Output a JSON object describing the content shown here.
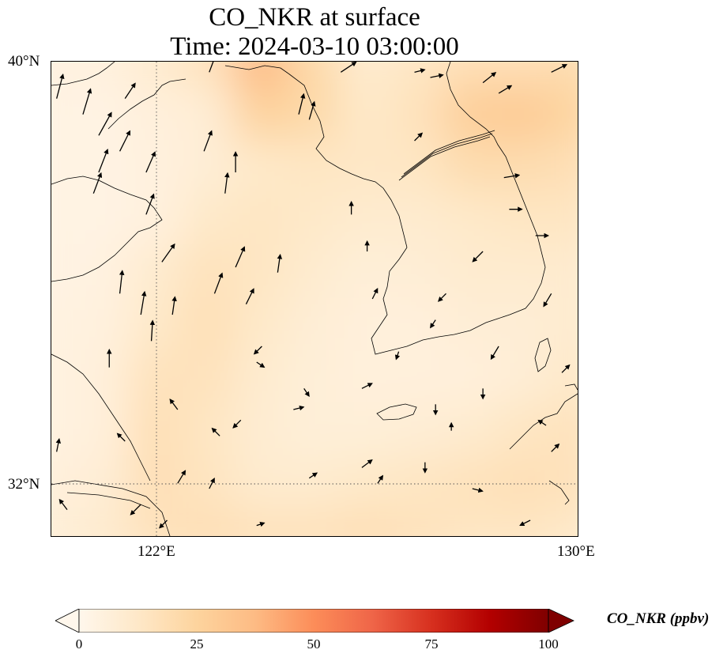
{
  "title": {
    "line1": "CO_NKR at surface",
    "line2": "Time: 2024-03-10 03:00:00"
  },
  "axes": {
    "lat_labels": [
      "40°N",
      "32°N"
    ],
    "lon_labels": [
      "122°E",
      "130°E"
    ],
    "lat_range": [
      31,
      40
    ],
    "lon_range": [
      120,
      130
    ],
    "gridlines": "dotted at 122°E and 32°N"
  },
  "colorbar": {
    "label": "CO_NKR (ppbv)",
    "ticks": [
      "0",
      "25",
      "50",
      "75",
      "100"
    ],
    "range": [
      0,
      100
    ],
    "colormap": "OrRd",
    "extend": "both",
    "colors": [
      "#fff7ec",
      "#fee8c8",
      "#fdd49e",
      "#fdbb84",
      "#fc8d59",
      "#ef6548",
      "#d7301f",
      "#b30000",
      "#7f0000"
    ]
  },
  "chart_data": {
    "type": "heatmap",
    "variable": "CO_NKR",
    "level": "surface",
    "units": "ppbv",
    "grid_lon": [
      120,
      121,
      122,
      123,
      124,
      125,
      126,
      127,
      128,
      129,
      130
    ],
    "grid_lat": [
      40,
      39,
      38,
      37,
      36,
      35,
      34,
      33,
      32,
      31
    ],
    "values": [
      [
        4,
        5,
        10,
        16,
        38,
        22,
        10,
        14,
        18,
        18,
        20
      ],
      [
        3,
        3,
        6,
        8,
        26,
        22,
        12,
        16,
        28,
        30,
        24
      ],
      [
        3,
        3,
        5,
        8,
        12,
        14,
        13,
        14,
        20,
        20,
        18
      ],
      [
        3,
        3,
        5,
        12,
        14,
        12,
        10,
        10,
        12,
        14,
        14
      ],
      [
        3,
        4,
        10,
        16,
        14,
        10,
        7,
        8,
        10,
        10,
        10
      ],
      [
        4,
        5,
        12,
        18,
        12,
        8,
        6,
        6,
        8,
        8,
        10
      ],
      [
        4,
        6,
        16,
        16,
        10,
        7,
        6,
        6,
        6,
        8,
        12
      ],
      [
        4,
        6,
        18,
        14,
        9,
        7,
        7,
        8,
        10,
        14,
        16
      ],
      [
        6,
        8,
        18,
        15,
        10,
        10,
        12,
        14,
        16,
        18,
        16
      ],
      [
        7,
        10,
        16,
        18,
        16,
        16,
        18,
        16,
        14,
        14,
        12
      ]
    ],
    "wind_vectors": [
      [
        120.1,
        39.3,
        0.25,
        0.95
      ],
      [
        120.6,
        39.0,
        0.3,
        1.0
      ],
      [
        120.9,
        38.6,
        0.5,
        0.9
      ],
      [
        120.9,
        37.9,
        0.35,
        0.9
      ],
      [
        120.8,
        37.5,
        0.3,
        0.8
      ],
      [
        121.3,
        38.3,
        0.4,
        0.8
      ],
      [
        121.8,
        37.9,
        0.35,
        0.8
      ],
      [
        121.8,
        37.1,
        0.3,
        0.8
      ],
      [
        122.1,
        36.2,
        0.5,
        0.7
      ],
      [
        121.3,
        35.6,
        0.1,
        0.9
      ],
      [
        121.7,
        35.2,
        0.15,
        0.9
      ],
      [
        121.9,
        34.7,
        0.05,
        0.8
      ],
      [
        121.1,
        34.2,
        0.0,
        0.7
      ],
      [
        122.3,
        35.2,
        0.1,
        0.7
      ],
      [
        123.1,
        35.6,
        0.3,
        0.8
      ],
      [
        123.5,
        36.1,
        0.35,
        0.8
      ],
      [
        124.3,
        36.0,
        0.1,
        0.7
      ],
      [
        122.9,
        38.3,
        0.3,
        0.8
      ],
      [
        123.5,
        37.9,
        0.0,
        0.8
      ],
      [
        123.3,
        37.5,
        0.1,
        0.8
      ],
      [
        123.0,
        39.8,
        0.3,
        0.8
      ],
      [
        124.7,
        39.0,
        0.2,
        0.8
      ],
      [
        124.9,
        38.9,
        0.2,
        0.7
      ],
      [
        125.5,
        39.8,
        0.6,
        0.4
      ],
      [
        126.9,
        39.8,
        0.4,
        0.1
      ],
      [
        127.2,
        39.7,
        0.5,
        0.1
      ],
      [
        128.2,
        39.6,
        0.5,
        0.4
      ],
      [
        129.5,
        39.8,
        0.6,
        0.3
      ],
      [
        123.7,
        35.4,
        0.3,
        0.6
      ],
      [
        124.0,
        34.6,
        -0.3,
        -0.3
      ],
      [
        123.9,
        34.3,
        0.3,
        -0.2
      ],
      [
        123.6,
        33.2,
        -0.3,
        -0.3
      ],
      [
        124.6,
        33.4,
        0.4,
        0.1
      ],
      [
        123.2,
        32.9,
        -0.3,
        0.3
      ],
      [
        122.4,
        33.4,
        -0.3,
        0.4
      ],
      [
        121.4,
        32.8,
        -0.3,
        0.3
      ],
      [
        120.1,
        32.6,
        0.1,
        0.5
      ],
      [
        122.4,
        32.0,
        0.3,
        0.5
      ],
      [
        123.0,
        31.9,
        0.2,
        0.4
      ],
      [
        122.2,
        31.3,
        -0.3,
        -0.3
      ],
      [
        121.7,
        31.6,
        -0.4,
        -0.4
      ],
      [
        120.3,
        31.5,
        -0.3,
        0.4
      ],
      [
        123.9,
        31.2,
        0.3,
        0.1
      ],
      [
        124.9,
        32.1,
        0.3,
        0.2
      ],
      [
        125.9,
        32.3,
        0.4,
        0.3
      ],
      [
        126.2,
        32.0,
        0.2,
        0.3
      ],
      [
        126.6,
        34.5,
        -0.1,
        -0.3
      ],
      [
        127.3,
        33.5,
        0.0,
        -0.4
      ],
      [
        127.6,
        33.0,
        0.0,
        0.3
      ],
      [
        127.1,
        32.4,
        0.0,
        -0.4
      ],
      [
        128.0,
        31.9,
        0.4,
        -0.1
      ],
      [
        128.5,
        34.6,
        -0.3,
        -0.5
      ],
      [
        128.2,
        33.8,
        0.0,
        -0.4
      ],
      [
        129.4,
        33.1,
        -0.3,
        0.2
      ],
      [
        129.1,
        31.3,
        -0.4,
        -0.2
      ],
      [
        129.5,
        32.6,
        0.3,
        0.3
      ],
      [
        128.6,
        37.8,
        0.6,
        0.1
      ],
      [
        128.7,
        37.2,
        0.5,
        0.0
      ],
      [
        128.2,
        36.4,
        -0.4,
        -0.4
      ],
      [
        129.2,
        36.7,
        0.5,
        0.0
      ],
      [
        129.5,
        35.6,
        -0.3,
        -0.5
      ],
      [
        129.7,
        34.1,
        0.3,
        0.3
      ],
      [
        128.5,
        39.4,
        0.5,
        0.3
      ],
      [
        125.7,
        37.1,
        0.0,
        0.5
      ],
      [
        126.0,
        36.4,
        0.0,
        0.4
      ],
      [
        127.5,
        35.6,
        -0.3,
        -0.3
      ],
      [
        127.3,
        35.1,
        -0.2,
        -0.3
      ],
      [
        126.1,
        35.5,
        0.2,
        0.4
      ],
      [
        126.9,
        38.5,
        0.3,
        0.3
      ],
      [
        124.8,
        33.8,
        0.2,
        -0.3
      ],
      [
        125.9,
        33.8,
        0.4,
        0.2
      ],
      [
        121.4,
        39.3,
        0.4,
        0.6
      ]
    ]
  },
  "map_layers": {
    "features": [
      "coastlines",
      "country borders",
      "wind vectors"
    ]
  }
}
